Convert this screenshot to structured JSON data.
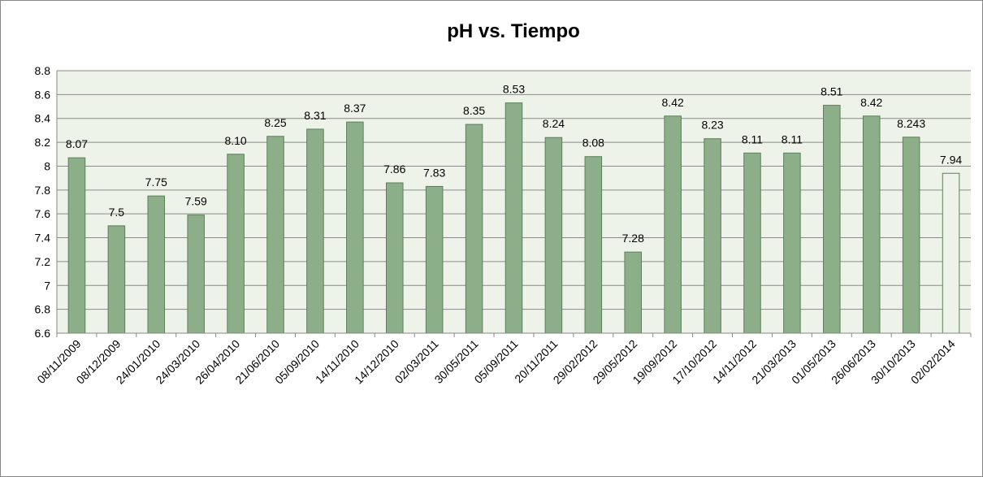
{
  "chart_data": {
    "type": "bar",
    "title": "pH vs. Tiempo",
    "categories": [
      "08/11/2009",
      "08/12/2009",
      "24/01/2010",
      "24/03/2010",
      "26/04/2010",
      "21/06/2010",
      "05/09/2010",
      "14/11/2010",
      "14/12/2010",
      "02/03/2011",
      "30/05/2011",
      "05/09/2011",
      "20/11/2011",
      "29/02/2012",
      "29/05/2012",
      "19/09/2012",
      "17/10/2012",
      "14/11/2012",
      "21/03/2013",
      "01/05/2013",
      "26/06/2013",
      "30/10/2013",
      "02/02/2014"
    ],
    "values": [
      8.07,
      7.5,
      7.75,
      7.59,
      8.1,
      8.25,
      8.31,
      8.37,
      7.86,
      7.83,
      8.35,
      8.53,
      8.24,
      8.08,
      7.28,
      8.42,
      8.23,
      8.11,
      8.11,
      8.51,
      8.42,
      8.243,
      7.94
    ],
    "value_labels": [
      "8.07",
      "7.5",
      "7.75",
      "7.59",
      "8.10",
      "8.25",
      "8.31",
      "8.37",
      "7.86",
      "7.83",
      "8.35",
      "8.53",
      "8.24",
      "8.08",
      "7.28",
      "8.42",
      "8.23",
      "8.11",
      "8.11",
      "8.51",
      "8.42",
      "8.243",
      "7.94"
    ],
    "colors": [
      "#8cae88",
      "#8cae88",
      "#8cae88",
      "#8cae88",
      "#8cae88",
      "#8cae88",
      "#8cae88",
      "#8cae88",
      "#8cae88",
      "#8cae88",
      "#8cae88",
      "#8cae88",
      "#8cae88",
      "#8cae88",
      "#8cae88",
      "#8cae88",
      "#8cae88",
      "#8cae88",
      "#8cae88",
      "#8cae88",
      "#8cae88",
      "#8cae88",
      "#eef3ea"
    ],
    "ylim": [
      6.6,
      8.8
    ],
    "yticks": [
      6.6,
      6.8,
      7,
      7.2,
      7.4,
      7.6,
      7.8,
      8,
      8.2,
      8.4,
      8.6,
      8.8
    ],
    "grid": true
  }
}
